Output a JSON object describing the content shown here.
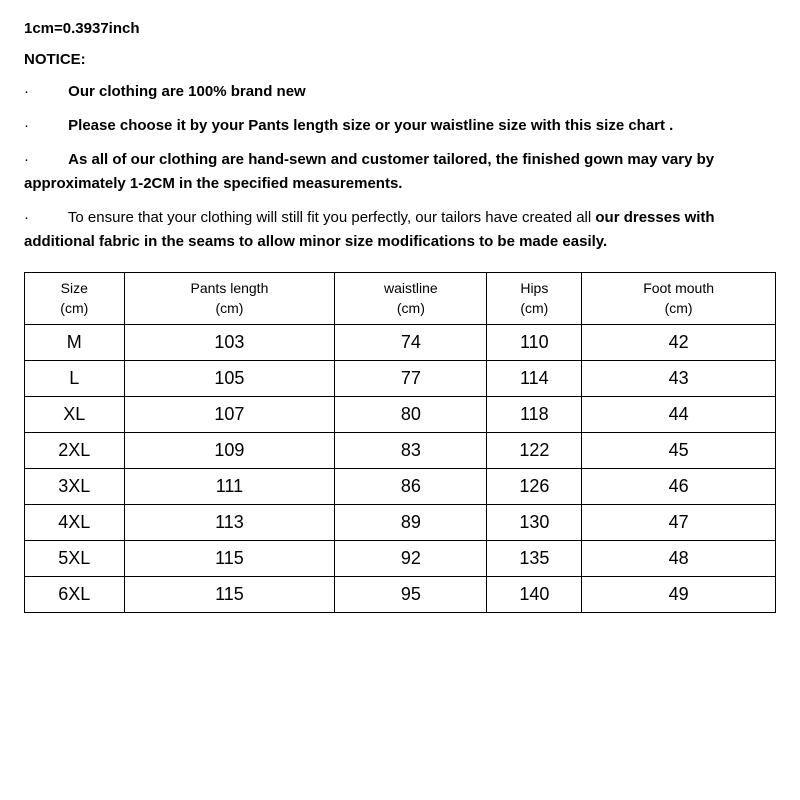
{
  "conversion_text": "1cm=0.3937inch",
  "notice_heading": "NOTICE:",
  "bullets": [
    {
      "lead": "",
      "text_bold": "Our clothing are 100% brand new",
      "text_normal_start": "",
      "text_normal_end": ""
    },
    {
      "lead": "",
      "text_bold": "Please choose it by your Pants length size or your waistline size with this size chart .",
      "text_normal_start": "",
      "text_normal_end": ""
    },
    {
      "lead": "",
      "text_bold": "As all of our clothing are hand-sewn and customer tailored, the finished gown may vary by approximately 1-2CM in the specified measurements.",
      "text_normal_start": "",
      "text_normal_end": ""
    },
    {
      "lead": "",
      "text_normal_start": "To ensure that your clothing will still fit you perfectly, our tailors have created all ",
      "text_bold": "our dresses with additional fabric in the seams to allow minor size modifications to be made easily.",
      "text_normal_end": ""
    }
  ],
  "table": {
    "columns": [
      {
        "label": "Size",
        "unit": "(cm)"
      },
      {
        "label": "Pants length",
        "unit": "(cm)"
      },
      {
        "label": "waistline",
        "unit": "(cm)"
      },
      {
        "label": "Hips",
        "unit": "(cm)"
      },
      {
        "label": "Foot mouth",
        "unit": "(cm)"
      }
    ],
    "rows": [
      [
        "M",
        "103",
        "74",
        "110",
        "42"
      ],
      [
        "L",
        "105",
        "77",
        "114",
        "43"
      ],
      [
        "XL",
        "107",
        "80",
        "118",
        "44"
      ],
      [
        "2XL",
        "109",
        "83",
        "122",
        "45"
      ],
      [
        "3XL",
        "111",
        "86",
        "126",
        "46"
      ],
      [
        "4XL",
        "113",
        "89",
        "130",
        "47"
      ],
      [
        "5XL",
        "115",
        "92",
        "135",
        "48"
      ],
      [
        "6XL",
        "115",
        "95",
        "140",
        "49"
      ]
    ],
    "border_color": "#000000",
    "background_color": "#ffffff",
    "header_fontsize": 14,
    "cell_fontsize": 18
  }
}
